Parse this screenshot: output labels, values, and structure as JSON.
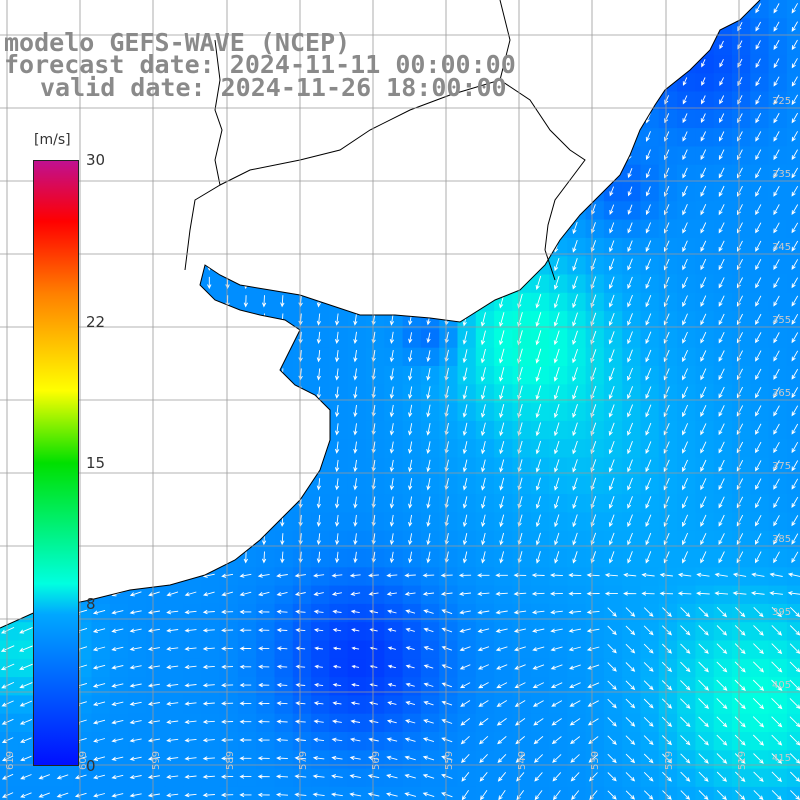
{
  "title": {
    "line1": "modelo GEFS-WAVE (NCEP)",
    "line2": "forecast date: 2024-11-11 00:00:00",
    "line3": "valid date: 2024-11-26 18:00:00"
  },
  "colorbar": {
    "unit": "[m/s]",
    "ticks": [
      {
        "label": "30",
        "value": 30
      },
      {
        "label": "22",
        "value": 22
      },
      {
        "label": "15",
        "value": 15
      },
      {
        "label": "8",
        "value": 8
      },
      {
        "label": "0",
        "value": 0
      }
    ],
    "min": 0,
    "max": 30,
    "colors": [
      "#0010ff",
      "#00a8ff",
      "#00ffe0",
      "#00e000",
      "#ffff00",
      "#ff8000",
      "#ff0000",
      "#c01090"
    ]
  },
  "map": {
    "variable": "wind speed and direction",
    "lat_labels_right": [
      "325",
      "335",
      "345",
      "355",
      "365",
      "375",
      "385",
      "395",
      "405",
      "415"
    ],
    "lon_labels_bottom": [
      "619",
      "609",
      "599",
      "589",
      "579",
      "569",
      "559",
      "549",
      "539",
      "529",
      "519"
    ],
    "land_color": "#ffffff",
    "grid_color": "#9a9a9a",
    "arrow_color": "#ffffff"
  }
}
